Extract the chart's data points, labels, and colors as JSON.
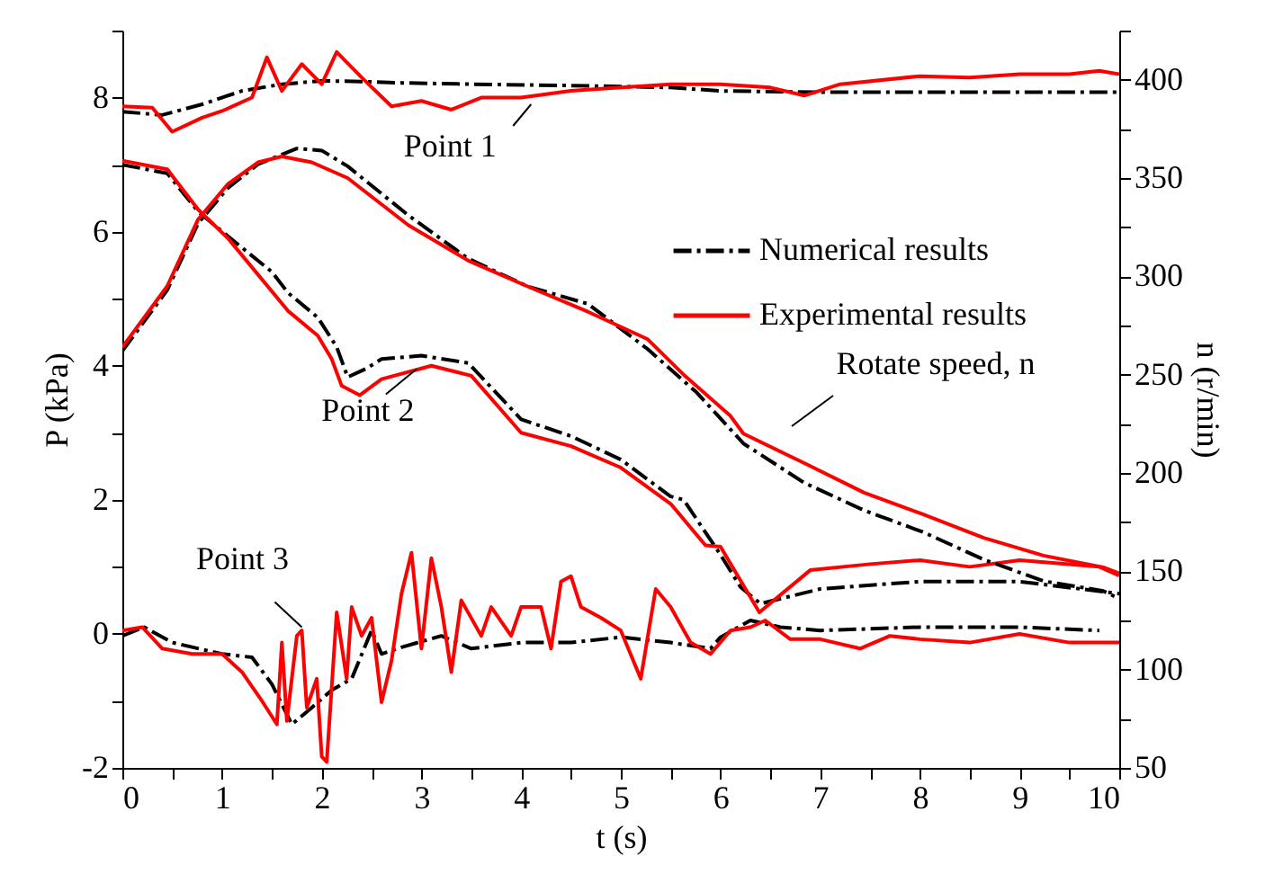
{
  "chart_data": {
    "type": "line",
    "xlabel": "t (s)",
    "ylabel": "P (kPa)",
    "y2label": "n (r/min)",
    "xlim": [
      0,
      10
    ],
    "xticks": [
      0,
      {
        "value": 0.5,
        "label": null
      },
      1,
      {
        "value": 1.5,
        "label": null
      },
      2,
      {
        "value": 2.5,
        "label": null
      },
      3,
      {
        "value": 3.5,
        "label": null
      },
      4,
      {
        "value": 4.5,
        "label": null
      },
      5,
      {
        "value": 5.5,
        "label": null
      },
      6,
      {
        "value": 6.5,
        "label": null
      },
      7,
      {
        "value": 7.5,
        "label": null
      },
      8,
      {
        "value": 8.5,
        "label": null
      },
      9,
      {
        "value": 9.5,
        "label": null
      },
      10
    ],
    "ylim": [
      -2,
      9
    ],
    "yticks": [
      -2,
      {
        "value": -1,
        "label": null
      },
      0,
      {
        "value": 1,
        "label": null
      },
      2,
      {
        "value": 3,
        "label": null
      },
      4,
      {
        "value": 5,
        "label": null
      },
      6,
      {
        "value": 7,
        "label": null
      },
      8,
      {
        "value": 9,
        "label": null
      }
    ],
    "y2lim": [
      50,
      425
    ],
    "y2ticks": [
      50,
      {
        "value": 75,
        "label": null
      },
      100,
      {
        "value": 125,
        "label": null
      },
      150,
      {
        "value": 175,
        "label": null
      },
      200,
      {
        "value": 225,
        "label": null
      },
      250,
      {
        "value": 275,
        "label": null
      },
      300,
      {
        "value": 325,
        "label": null
      },
      350,
      {
        "value": 375,
        "label": null
      },
      400,
      {
        "value": 425,
        "label": null
      }
    ],
    "legend": "top right",
    "grid": false,
    "series": [
      {
        "name": "Numerical results",
        "color": "#000000",
        "line_style": "dashed",
        "x": [
          0,
          0.4,
          0.8,
          1.2,
          1.6,
          2.0,
          2.4,
          2.8,
          3.5,
          4.5,
          5.5,
          6.0,
          7,
          8,
          9,
          10
        ],
        "values": [
          7.79,
          7.74,
          7.9,
          8.1,
          8.2,
          8.25,
          8.24,
          8.22,
          8.2,
          8.18,
          8.15,
          8.1,
          8.08,
          8.08,
          8.08,
          8.08
        ]
      },
      {
        "name": "Experimental results",
        "color": "#ff0000",
        "line_style": "solid",
        "x": [
          0,
          0.3,
          0.5,
          0.8,
          1.0,
          1.3,
          1.45,
          1.6,
          1.8,
          2.0,
          2.15,
          2.4,
          2.7,
          3.0,
          3.3,
          3.6,
          4.0,
          4.5,
          5.0,
          5.5,
          6.0,
          6.5,
          6.84,
          7.2,
          8.0,
          8.5,
          9.0,
          9.5,
          9.8,
          10
        ],
        "values": [
          7.87,
          7.85,
          7.49,
          7.7,
          7.8,
          8.0,
          8.6,
          8.1,
          8.5,
          8.2,
          8.68,
          8.3,
          7.87,
          7.95,
          7.82,
          8.0,
          8.0,
          8.1,
          8.15,
          8.2,
          8.2,
          8.15,
          8.03,
          8.2,
          8.32,
          8.3,
          8.35,
          8.35,
          8.4,
          8.35
        ]
      },
      {
        "color": "#000000",
        "line_style": "dashed",
        "x": [
          0,
          0.45,
          0.76,
          1.06,
          1.5,
          1.66,
          1.96,
          2.15,
          2.26,
          2.45,
          2.6,
          3.0,
          3.47,
          4.0,
          4.5,
          5.0,
          5.5,
          5.63,
          6.0,
          6.2,
          6.4,
          7,
          8,
          9,
          10
        ],
        "values": [
          7.0,
          6.87,
          6.3,
          5.93,
          5.4,
          5.09,
          4.72,
          4.28,
          3.83,
          3.96,
          4.1,
          4.15,
          4.04,
          3.2,
          2.95,
          2.6,
          2.05,
          2.0,
          1.18,
          0.7,
          0.45,
          0.67,
          0.78,
          0.78,
          0.6
        ]
      },
      {
        "color": "#ff0000",
        "line_style": "solid",
        "x": [
          0,
          0.45,
          0.76,
          1.06,
          1.66,
          1.96,
          2.1,
          2.2,
          2.38,
          2.6,
          3.1,
          3.5,
          4.0,
          4.5,
          5.0,
          5.5,
          5.85,
          6.0,
          6.39,
          6.9,
          7.5,
          8,
          8.5,
          9,
          9.8,
          10
        ],
        "values": [
          7.06,
          6.93,
          6.33,
          5.9,
          4.82,
          4.45,
          4.1,
          3.7,
          3.56,
          3.8,
          4.0,
          3.85,
          3.0,
          2.8,
          2.48,
          1.94,
          1.32,
          1.3,
          0.32,
          0.95,
          1.04,
          1.1,
          1.0,
          1.1,
          1.0,
          0.87
        ]
      },
      {
        "color": "#000000",
        "line_style": "dashed",
        "x": [
          0,
          0.22,
          0.5,
          1.0,
          1.3,
          1.5,
          1.7,
          1.9,
          2.1,
          2.3,
          2.5,
          2.6,
          2.8,
          3.2,
          3.5,
          4,
          4.5,
          5,
          5.5,
          5.9,
          6.0,
          6.3,
          6.6,
          7,
          8,
          9,
          9.8
        ],
        "values": [
          -0.03,
          0.1,
          -0.13,
          -0.3,
          -0.35,
          -0.75,
          -1.35,
          -1.1,
          -0.84,
          -0.67,
          0.05,
          -0.3,
          -0.2,
          -0.03,
          -0.22,
          -0.13,
          -0.13,
          -0.05,
          -0.13,
          -0.22,
          -0.05,
          0.2,
          0.1,
          0.05,
          0.1,
          0.1,
          0.05
        ]
      },
      {
        "color": "#ff0000",
        "line_style": "solid",
        "x": [
          0,
          0.2,
          0.4,
          0.7,
          1.0,
          1.2,
          1.4,
          1.55,
          1.6,
          1.65,
          1.75,
          1.8,
          1.85,
          1.95,
          2.0,
          2.05,
          2.15,
          2.25,
          2.3,
          2.4,
          2.5,
          2.6,
          2.7,
          2.8,
          2.9,
          3.0,
          3.1,
          3.2,
          3.3,
          3.4,
          3.6,
          3.7,
          3.9,
          4.0,
          4.2,
          4.3,
          4.4,
          4.5,
          4.6,
          4.8,
          5.0,
          5.2,
          5.35,
          5.5,
          5.7,
          5.9,
          6.1,
          6.3,
          6.45,
          6.7,
          7,
          7.4,
          7.7,
          8,
          8.5,
          9,
          9.5,
          10
        ],
        "values": [
          0.05,
          0.1,
          -0.22,
          -0.3,
          -0.3,
          -0.57,
          -1.0,
          -1.35,
          -0.13,
          -1.3,
          -0.03,
          0.05,
          -1.1,
          -0.67,
          -1.83,
          -1.91,
          0.32,
          -0.67,
          0.4,
          -0.03,
          0.24,
          -1.02,
          -0.4,
          0.6,
          1.21,
          -0.22,
          1.13,
          0.4,
          -0.57,
          0.5,
          -0.03,
          0.4,
          -0.03,
          0.4,
          0.4,
          -0.22,
          0.78,
          0.86,
          0.4,
          0.24,
          0.05,
          -0.67,
          0.67,
          0.4,
          -0.13,
          -0.3,
          0.05,
          0.1,
          0.2,
          -0.08,
          -0.08,
          -0.22,
          -0.03,
          -0.08,
          -0.13,
          0,
          -0.13,
          -0.13
        ]
      },
      {
        "color": "#000000",
        "line_style": "dashed",
        "axis": "y2",
        "x": [
          0,
          0.45,
          0.76,
          1.06,
          1.36,
          1.75,
          2.0,
          2.26,
          2.87,
          3.47,
          4.06,
          4.67,
          5.27,
          5.76,
          6.23,
          6.84,
          7.44,
          8.03,
          8.64,
          9.24,
          9.84,
          10
        ],
        "values": [
          262,
          293,
          327,
          345,
          357,
          365,
          364,
          356,
          331,
          309,
          295,
          286,
          263,
          241,
          215,
          195,
          181,
          170,
          156,
          145,
          140,
          136
        ]
      },
      {
        "color": "#ff0000",
        "line_style": "solid",
        "axis": "y2",
        "x": [
          0,
          0.45,
          0.76,
          1.06,
          1.36,
          1.6,
          1.9,
          2.26,
          2.87,
          3.47,
          4.06,
          4.67,
          5.27,
          5.63,
          6.1,
          6.23,
          6.84,
          7.44,
          8.03,
          8.64,
          9.24,
          9.84,
          10
        ],
        "values": [
          264,
          295,
          329,
          347,
          358,
          361,
          358,
          350,
          326,
          308,
          295,
          282,
          268,
          250,
          229,
          220,
          205,
          190,
          179,
          167,
          158,
          152,
          149
        ]
      }
    ],
    "annotations": [
      {
        "text": "Point 1",
        "x": 4.1,
        "y": 7.9
      },
      {
        "text": "Point 2",
        "x": 2.95,
        "y": 3.95
      },
      {
        "text": "Point 3",
        "x": 1.8,
        "y": 0.1
      },
      "Rotate speed, n"
    ]
  }
}
